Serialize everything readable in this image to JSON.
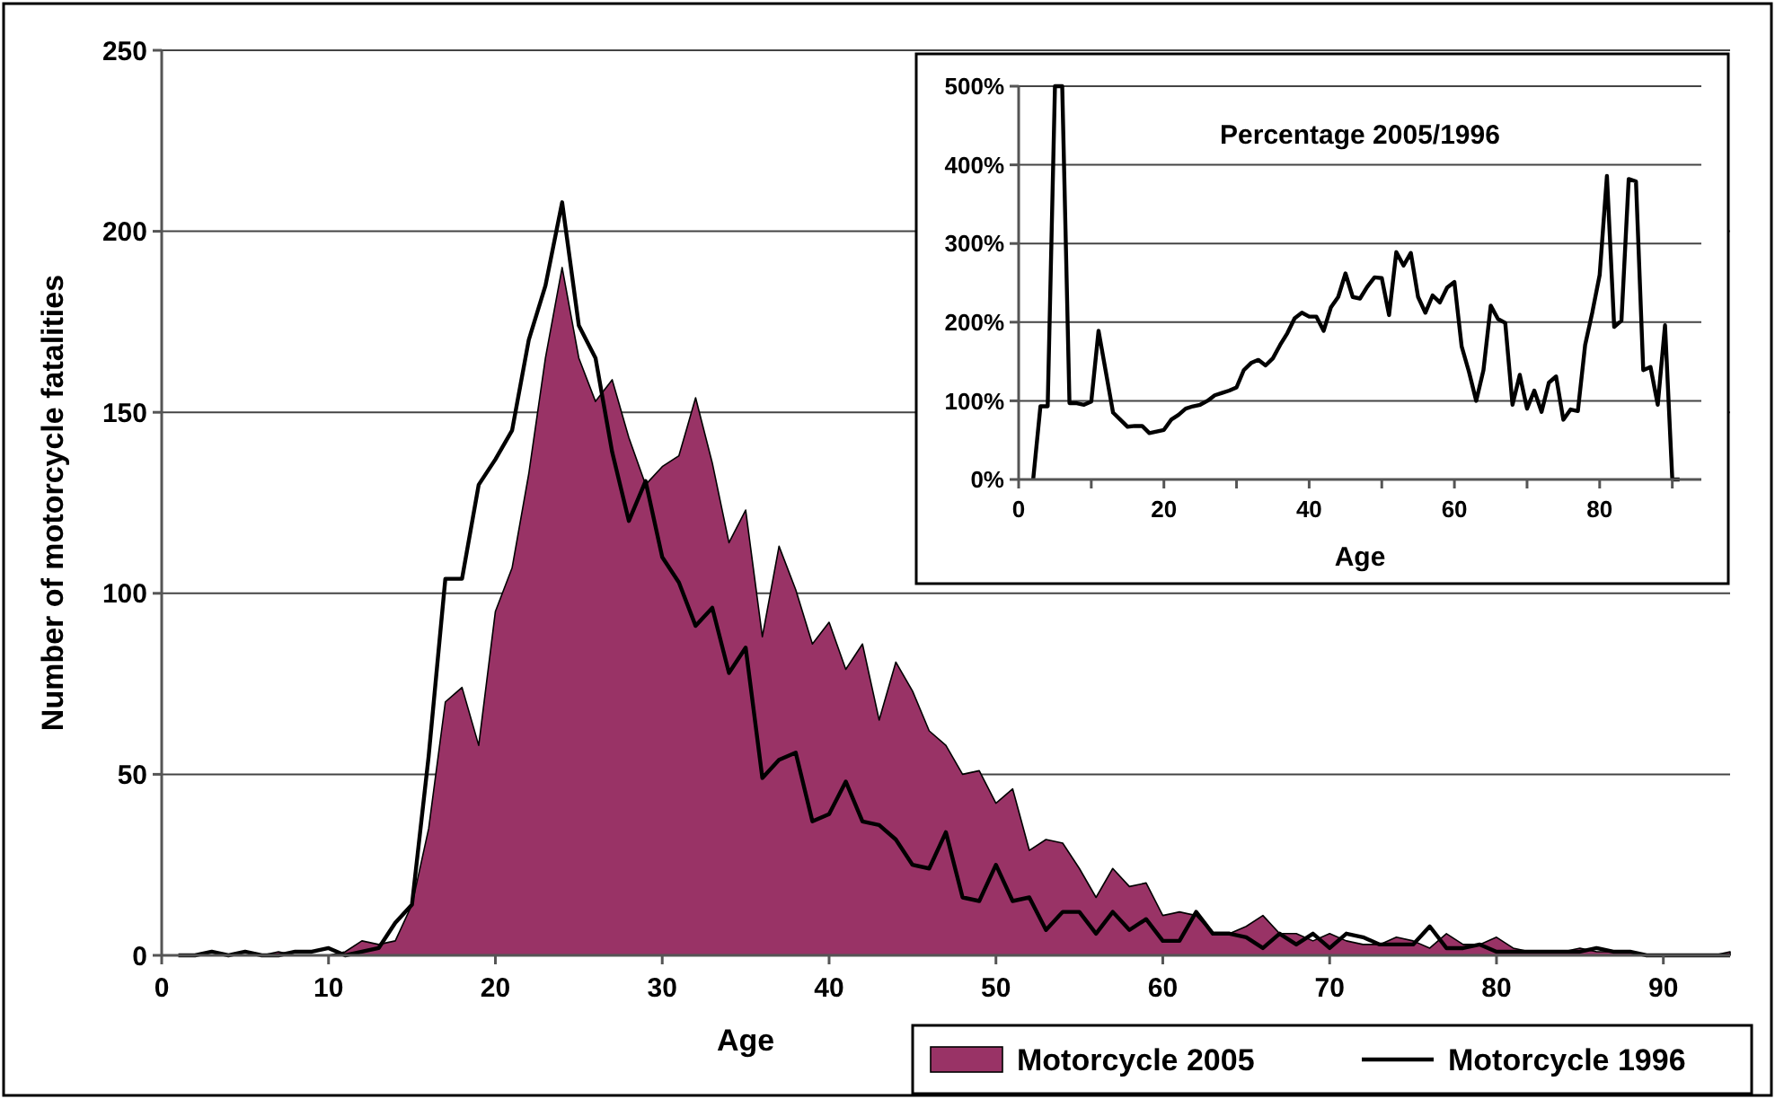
{
  "chart_data": [
    {
      "type": "area",
      "xlabel": "Age",
      "ylabel": "Number of motorcycle fatalities",
      "x": [
        1,
        2,
        3,
        4,
        5,
        6,
        7,
        8,
        9,
        10,
        11,
        12,
        13,
        14,
        15,
        16,
        17,
        18,
        19,
        20,
        21,
        22,
        23,
        24,
        25,
        26,
        27,
        28,
        29,
        30,
        31,
        32,
        33,
        34,
        35,
        36,
        37,
        38,
        39,
        40,
        41,
        42,
        43,
        44,
        45,
        46,
        47,
        48,
        49,
        50,
        51,
        52,
        53,
        54,
        55,
        56,
        57,
        58,
        59,
        60,
        61,
        62,
        63,
        64,
        65,
        66,
        67,
        68,
        69,
        70,
        71,
        72,
        73,
        74,
        75,
        76,
        77,
        78,
        79,
        80,
        81,
        82,
        83,
        84,
        85,
        86,
        87,
        88,
        89,
        90,
        91,
        92,
        93,
        94
      ],
      "series": [
        {
          "name": "Motorcycle 2005",
          "color": "#993366",
          "values": [
            0,
            0,
            0,
            0,
            0,
            0,
            1,
            0,
            0,
            0,
            1,
            4,
            3,
            4,
            14,
            35,
            70,
            74,
            58,
            95,
            107,
            133,
            165,
            190,
            165,
            153,
            159,
            143,
            130,
            135,
            138,
            154,
            136,
            114,
            123,
            88,
            113,
            101,
            86,
            92,
            79,
            86,
            65,
            81,
            73,
            62,
            58,
            50,
            51,
            42,
            46,
            29,
            32,
            31,
            24,
            16,
            24,
            19,
            20,
            11,
            12,
            11,
            6,
            6,
            8,
            11,
            6,
            6,
            4,
            6,
            4,
            3,
            3,
            5,
            4,
            2,
            6,
            3,
            3,
            5,
            2,
            1,
            1,
            1,
            2,
            1,
            1,
            1,
            0,
            0,
            0,
            0,
            0,
            1
          ]
        },
        {
          "name": "Motorcycle 1996",
          "type": "line",
          "color": "#000000",
          "values": [
            0,
            0,
            1,
            0,
            1,
            0,
            0,
            1,
            1,
            2,
            0,
            1,
            2,
            9,
            14,
            55,
            104,
            104,
            130,
            137,
            145,
            170,
            185,
            208,
            174,
            165,
            139,
            120,
            131,
            110,
            103,
            91,
            96,
            78,
            85,
            49,
            54,
            56,
            37,
            39,
            48,
            37,
            36,
            32,
            25,
            24,
            34,
            16,
            15,
            25,
            15,
            16,
            7,
            12,
            12,
            6,
            12,
            7,
            10,
            4,
            4,
            12,
            6,
            6,
            5,
            2,
            6,
            3,
            6,
            2,
            6,
            5,
            3,
            3,
            3,
            8,
            2,
            2,
            3,
            1,
            1,
            1,
            1,
            1,
            1,
            2,
            1,
            1,
            0,
            0,
            0,
            0,
            0,
            0
          ]
        }
      ],
      "xlim": [
        0,
        94
      ],
      "xticks": [
        0,
        10,
        20,
        30,
        40,
        50,
        60,
        70,
        80,
        90
      ],
      "ylim": [
        0,
        250
      ],
      "yticks": [
        0,
        50,
        100,
        150,
        200,
        250
      ],
      "grid": "y",
      "legend": "bottom right"
    },
    {
      "type": "line",
      "title": "Percentage 2005/1996",
      "xlabel": "Age",
      "x": [
        2,
        3,
        4,
        5,
        6,
        7,
        8,
        9,
        10,
        11,
        12,
        13,
        14,
        15,
        16,
        17,
        18,
        19,
        20,
        21,
        22,
        23,
        24,
        25,
        26,
        27,
        28,
        29,
        30,
        31,
        32,
        33,
        34,
        35,
        36,
        37,
        38,
        39,
        40,
        41,
        42,
        43,
        44,
        45,
        46,
        47,
        48,
        49,
        50,
        51,
        52,
        53,
        54,
        55,
        56,
        57,
        58,
        59,
        60,
        61,
        62,
        63,
        64,
        65,
        66,
        67,
        68,
        69,
        70,
        71,
        72,
        73,
        74,
        75,
        76,
        77,
        78,
        79,
        80,
        81,
        82,
        83,
        84,
        85,
        86,
        87,
        88,
        89,
        90,
        91
      ],
      "series": [
        {
          "color": "#000000",
          "values": [
            0,
            93,
            93,
            500,
            500,
            97,
            97,
            95,
            99,
            189,
            137,
            85,
            76,
            67,
            68,
            68,
            59,
            61,
            63,
            76,
            82,
            90,
            93,
            95,
            100,
            107,
            110,
            113,
            117,
            139,
            148,
            152,
            145,
            154,
            171,
            186,
            205,
            212,
            207,
            207,
            189,
            219,
            232,
            262,
            232,
            230,
            245,
            257,
            256,
            209,
            289,
            272,
            288,
            232,
            212,
            234,
            225,
            244,
            251,
            169,
            137,
            100,
            139,
            221,
            204,
            199,
            95,
            133,
            90,
            113,
            86,
            123,
            131,
            76,
            89,
            87,
            171,
            213,
            260,
            386,
            194,
            202,
            382,
            379,
            139,
            143,
            95,
            196,
            0,
            0
          ]
        }
      ],
      "xlim": [
        0,
        94
      ],
      "xticks": [
        0,
        {
          "value": 10,
          "label": null
        },
        20,
        {
          "value": 30,
          "label": null
        },
        40,
        {
          "value": 50,
          "label": null
        },
        60,
        {
          "value": 70,
          "label": null
        },
        80,
        {
          "value": 90,
          "label": null
        }
      ],
      "ylim": [
        0,
        500
      ],
      "yticks": [
        {
          "value": 0,
          "label": "0%"
        },
        {
          "value": 100,
          "label": "100%"
        },
        {
          "value": 200,
          "label": "200%"
        },
        {
          "value": 300,
          "label": "300%"
        },
        {
          "value": 400,
          "label": "400%"
        },
        {
          "value": 500,
          "label": "500%"
        }
      ],
      "grid": "y"
    }
  ]
}
